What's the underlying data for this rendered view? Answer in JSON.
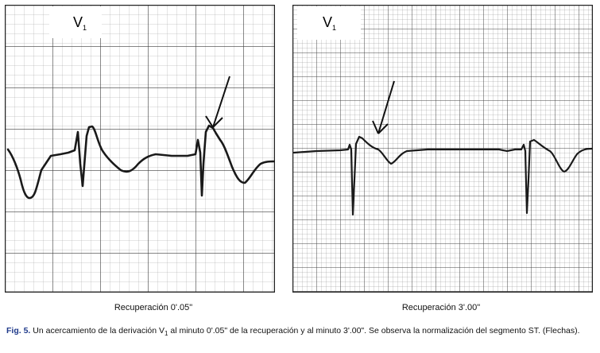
{
  "panels": [
    {
      "lead": "V",
      "lead_sub": "1",
      "label": "Recuperación 0'.05\""
    },
    {
      "lead": "V",
      "lead_sub": "1",
      "label": "Recuperación 3'.00\""
    }
  ],
  "caption": {
    "fig_label": "Fig. 5.",
    "text_before": " Un acercamiento de la derivación V",
    "text_sub": "1",
    "text_after": " al minuto 0'.05\" de la recuperación y al minuto 3'.00\". Se observa la normalización del segmento ST. (Flechas)."
  }
}
